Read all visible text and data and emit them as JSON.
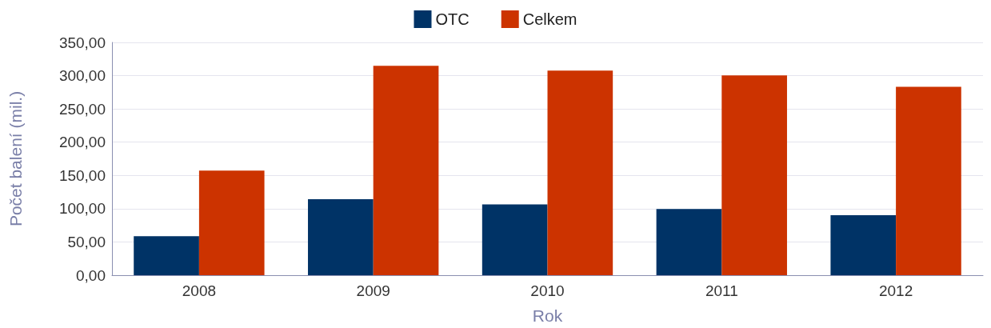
{
  "chart_data": {
    "type": "bar",
    "xlabel": "Rok",
    "ylabel": "Počet balení (mil.)",
    "categories": [
      "2008",
      "2009",
      "2010",
      "2011",
      "2012"
    ],
    "series": [
      {
        "name": "OTC",
        "color": "#003366",
        "values": [
          58.7,
          114.4,
          106.5,
          99.4,
          90.3
        ]
      },
      {
        "name": "Celkem",
        "color": "#cc3300",
        "values": [
          157.4,
          314.7,
          307.7,
          300.5,
          283.3
        ]
      }
    ],
    "ylim": [
      0,
      350
    ],
    "yticks": [
      {
        "value": 0,
        "label": "0,00"
      },
      {
        "value": 50,
        "label": "50,00"
      },
      {
        "value": 100,
        "label": "100,00"
      },
      {
        "value": 150,
        "label": "150,00"
      },
      {
        "value": 200,
        "label": "200,00"
      },
      {
        "value": 250,
        "label": "250,00"
      },
      {
        "value": 300,
        "label": "300,00"
      },
      {
        "value": 350,
        "label": "350,00"
      }
    ],
    "grid": "y",
    "legend": "top"
  }
}
